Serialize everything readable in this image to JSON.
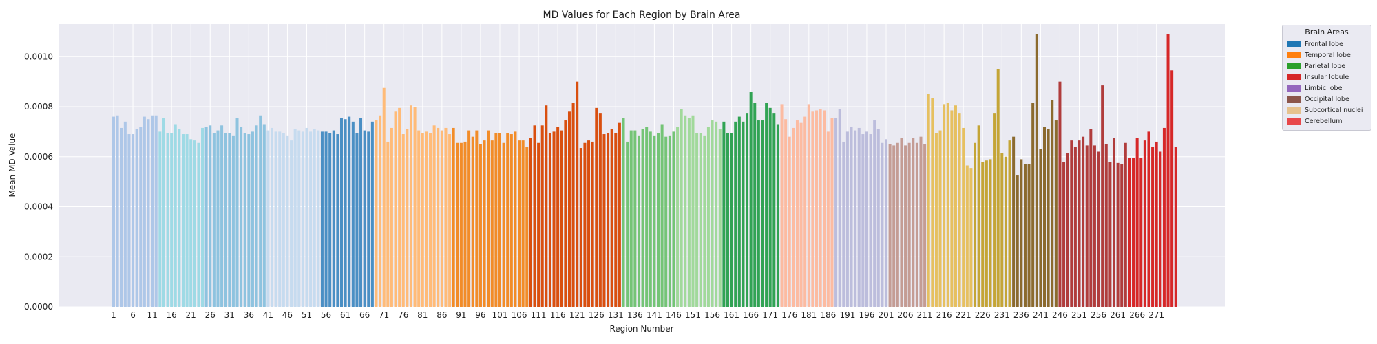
{
  "chart_data": {
    "type": "bar",
    "title": "MD Values for Each Region by Brain Area",
    "xlabel": "Region Number",
    "ylabel": "Mean MD Value",
    "ylim": [
      0,
      0.00113
    ],
    "yticks": [
      "0.0000",
      "0.0002",
      "0.0004",
      "0.0006",
      "0.0008",
      "0.0010"
    ],
    "ytick_values": [
      0,
      0.0002,
      0.0004,
      0.0006,
      0.0008,
      0.001
    ],
    "xtick_labels": [
      "1",
      "6",
      "11",
      "16",
      "21",
      "26",
      "31",
      "36",
      "41",
      "46",
      "51",
      "56",
      "61",
      "66",
      "71",
      "76",
      "81",
      "86",
      "91",
      "96",
      "101",
      "106",
      "111",
      "116",
      "121",
      "126",
      "131",
      "136",
      "141",
      "146",
      "151",
      "156",
      "161",
      "166",
      "171",
      "176",
      "181",
      "186",
      "191",
      "196",
      "201",
      "206",
      "211",
      "216",
      "221",
      "226",
      "231",
      "236",
      "241",
      "246",
      "251",
      "256",
      "261",
      "266",
      "271"
    ],
    "grid": true,
    "legend_placement": "outside-top-right",
    "legend_title": "Brain Areas",
    "legend": [
      {
        "name": "Frontal lobe",
        "color": "#1f77b4"
      },
      {
        "name": "Temporal lobe",
        "color": "#ff7f0e"
      },
      {
        "name": "Parietal lobe",
        "color": "#2ca02c"
      },
      {
        "name": "Insular lobule",
        "color": "#d62728"
      },
      {
        "name": "Limbic lobe",
        "color": "#9467bd"
      },
      {
        "name": "Occipital lobe",
        "color": "#8c564b"
      },
      {
        "name": "Subcortical nuclei",
        "color": "#e6c28e"
      },
      {
        "name": "Cerebellum",
        "color": "#e8474a"
      }
    ],
    "regions": [
      1,
      274
    ],
    "values": [
      0.00076,
      0.000765,
      0.000715,
      0.00074,
      0.00069,
      0.00069,
      0.00071,
      0.00072,
      0.00076,
      0.00075,
      0.000765,
      0.000765,
      0.0007,
      0.000755,
      0.000695,
      0.000695,
      0.00073,
      0.00071,
      0.00069,
      0.00069,
      0.00067,
      0.000665,
      0.000655,
      0.000715,
      0.00072,
      0.000725,
      0.000695,
      0.000705,
      0.000725,
      0.000695,
      0.000695,
      0.000685,
      0.000755,
      0.00072,
      0.000695,
      0.00069,
      0.0007,
      0.000725,
      0.000765,
      0.00073,
      0.000705,
      0.000715,
      0.0007,
      0.0007,
      0.000695,
      0.000685,
      0.000665,
      0.00071,
      0.000705,
      0.0007,
      0.000715,
      0.0007,
      0.00071,
      0.000705,
      0.0007,
      0.0007,
      0.000695,
      0.000705,
      0.00069,
      0.000755,
      0.00075,
      0.00076,
      0.00074,
      0.000695,
      0.000755,
      0.000705,
      0.0007,
      0.00074,
      0.000745,
      0.000765,
      0.000875,
      0.00066,
      0.000715,
      0.00078,
      0.000795,
      0.00069,
      0.00071,
      0.000805,
      0.0008,
      0.000705,
      0.000695,
      0.0007,
      0.000695,
      0.000725,
      0.000715,
      0.000705,
      0.000715,
      0.00069,
      0.000715,
      0.000655,
      0.000655,
      0.00066,
      0.000705,
      0.00068,
      0.000705,
      0.00065,
      0.000665,
      0.000705,
      0.000665,
      0.000695,
      0.000695,
      0.000655,
      0.000695,
      0.00069,
      0.0007,
      0.000665,
      0.000665,
      0.00064,
      0.000675,
      0.000725,
      0.000655,
      0.000725,
      0.000805,
      0.000695,
      0.0007,
      0.00072,
      0.000705,
      0.000745,
      0.00078,
      0.000815,
      0.0009,
      0.000635,
      0.000655,
      0.000665,
      0.00066,
      0.000795,
      0.000775,
      0.00069,
      0.000695,
      0.00071,
      0.000695,
      0.000735,
      0.000755,
      0.00066,
      0.000705,
      0.000705,
      0.000685,
      0.00071,
      0.00072,
      0.0007,
      0.000685,
      0.000695,
      0.00073,
      0.00068,
      0.000685,
      0.0007,
      0.00072,
      0.00079,
      0.000765,
      0.000755,
      0.000765,
      0.000695,
      0.000695,
      0.000685,
      0.00072,
      0.000745,
      0.00074,
      0.00071,
      0.00074,
      0.000695,
      0.000695,
      0.00074,
      0.00076,
      0.00074,
      0.000775,
      0.00086,
      0.000815,
      0.000745,
      0.000745,
      0.000815,
      0.000795,
      0.000775,
      0.00073,
      0.00081,
      0.00075,
      0.00068,
      0.000715,
      0.000745,
      0.000735,
      0.00076,
      0.00081,
      0.00078,
      0.000785,
      0.00079,
      0.000785,
      0.0007,
      0.000755,
      0.000755,
      0.00079,
      0.00066,
      0.0007,
      0.00072,
      0.000705,
      0.000715,
      0.00069,
      0.0007,
      0.00069,
      0.000745,
      0.00071,
      0.000655,
      0.00067,
      0.00065,
      0.000645,
      0.000655,
      0.000675,
      0.000645,
      0.000655,
      0.000675,
      0.000655,
      0.00068,
      0.00065,
      0.00085,
      0.000835,
      0.000695,
      0.000705,
      0.00081,
      0.000815,
      0.000785,
      0.000805,
      0.000775,
      0.000715,
      0.000565,
      0.000555,
      0.000655,
      0.000725,
      0.00058,
      0.000585,
      0.00059,
      0.000775,
      0.00095,
      0.000615,
      0.0006,
      0.000665,
      0.00068,
      0.000525,
      0.00059,
      0.00057,
      0.00057,
      0.000815,
      0.00109,
      0.00063,
      0.00072,
      0.00071,
      0.000825,
      0.000745,
      0.0009,
      0.00058,
      0.000615,
      0.000665,
      0.00064,
      0.000665,
      0.00068,
      0.000645,
      0.00071,
      0.000645,
      0.00062,
      0.000885,
      0.00065,
      0.00058,
      0.000675,
      0.000575,
      0.00057,
      0.000655,
      0.000595,
      0.000595,
      0.000675,
      0.000595,
      0.000665,
      0.0007,
      0.00064,
      0.00066,
      0.00062,
      0.000715,
      0.00109,
      0.000945,
      0.00064
    ],
    "bar_colors": [
      "#aec7e8",
      "#aec7e8",
      "#aec7e8",
      "#aec7e8",
      "#aec7e8",
      "#aec7e8",
      "#aec7e8",
      "#aec7e8",
      "#aec7e8",
      "#aec7e8",
      "#aec7e8",
      "#aec7e8",
      "#9edae5",
      "#9edae5",
      "#9edae5",
      "#9edae5",
      "#9edae5",
      "#9edae5",
      "#9edae5",
      "#9edae5",
      "#9edae5",
      "#9edae5",
      "#9edae5",
      "#9edae5",
      "#8ec3df",
      "#8ec3df",
      "#8ec3df",
      "#8ec3df",
      "#8ec3df",
      "#8ec3df",
      "#8ec3df",
      "#8ec3df",
      "#8ec3df",
      "#8ec3df",
      "#8ec3df",
      "#8ec3df",
      "#8ec3df",
      "#8ec3df",
      "#8ec3df",
      "#8ec3df",
      "#c6dbef",
      "#c6dbef",
      "#c6dbef",
      "#c6dbef",
      "#c6dbef",
      "#c6dbef",
      "#c6dbef",
      "#c6dbef",
      "#c6dbef",
      "#c6dbef",
      "#c6dbef",
      "#c6dbef",
      "#c6dbef",
      "#c6dbef",
      "#4a8fc4",
      "#4a8fc4",
      "#4a8fc4",
      "#4a8fc4",
      "#4a8fc4",
      "#4a8fc4",
      "#4a8fc4",
      "#4a8fc4",
      "#4a8fc4",
      "#4a8fc4",
      "#4a8fc4",
      "#4a8fc4",
      "#4a8fc4",
      "#4a8fc4",
      "#ffbb78",
      "#ffbb78",
      "#ffbb78",
      "#ffbb78",
      "#ffbb78",
      "#ffbb78",
      "#ffbb78",
      "#ffbb78",
      "#ffbb78",
      "#ffbb78",
      "#ffbb78",
      "#ffbb78",
      "#ffbb78",
      "#ffbb78",
      "#ffbb78",
      "#ffbb78",
      "#ffbb78",
      "#ffbb78",
      "#ffbb78",
      "#ffbb78",
      "#f28c28",
      "#f28c28",
      "#f28c28",
      "#f28c28",
      "#f28c28",
      "#f28c28",
      "#f28c28",
      "#f28c28",
      "#f28c28",
      "#f28c28",
      "#f28c28",
      "#f28c28",
      "#f28c28",
      "#f28c28",
      "#f28c28",
      "#f28c28",
      "#f28c28",
      "#f28c28",
      "#f28c28",
      "#f28c28",
      "#d94f0f",
      "#d94f0f",
      "#d94f0f",
      "#d94f0f",
      "#d94f0f",
      "#d94f0f",
      "#d94f0f",
      "#d94f0f",
      "#d94f0f",
      "#d94f0f",
      "#d94f0f",
      "#d94f0f",
      "#d94f0f",
      "#d94f0f",
      "#d94f0f",
      "#d94f0f",
      "#d94f0f",
      "#d94f0f",
      "#d94f0f",
      "#d94f0f",
      "#d94f0f",
      "#d94f0f",
      "#d94f0f",
      "#d94f0f",
      "#74c476",
      "#74c476",
      "#74c476",
      "#74c476",
      "#74c476",
      "#74c476",
      "#74c476",
      "#74c476",
      "#74c476",
      "#74c476",
      "#74c476",
      "#74c476",
      "#74c476",
      "#74c476",
      "#a1d99b",
      "#a1d99b",
      "#a1d99b",
      "#a1d99b",
      "#a1d99b",
      "#a1d99b",
      "#a1d99b",
      "#a1d99b",
      "#a1d99b",
      "#a1d99b",
      "#a1d99b",
      "#a1d99b",
      "#31a354",
      "#31a354",
      "#31a354",
      "#31a354",
      "#31a354",
      "#31a354",
      "#31a354",
      "#31a354",
      "#31a354",
      "#31a354",
      "#31a354",
      "#31a354",
      "#31a354",
      "#31a354",
      "#31a354",
      "#fcbba1",
      "#fcbba1",
      "#fcbba1",
      "#fcbba1",
      "#fcbba1",
      "#fcbba1",
      "#fcbba1",
      "#fcbba1",
      "#fcbba1",
      "#fcbba1",
      "#fcbba1",
      "#fcbba1",
      "#fcbba1",
      "#fcbba1",
      "#bcbddc",
      "#bcbddc",
      "#bcbddc",
      "#bcbddc",
      "#bcbddc",
      "#bcbddc",
      "#bcbddc",
      "#bcbddc",
      "#bcbddc",
      "#bcbddc",
      "#bcbddc",
      "#bcbddc",
      "#bcbddc",
      "#bcbddc",
      "#c49c94",
      "#c49c94",
      "#c49c94",
      "#c49c94",
      "#c49c94",
      "#c49c94",
      "#c49c94",
      "#c49c94",
      "#c49c94",
      "#c49c94",
      "#e6c060",
      "#e6c060",
      "#e6c060",
      "#e6c060",
      "#e6c060",
      "#e6c060",
      "#e6c060",
      "#e6c060",
      "#e6c060",
      "#e6c060",
      "#e6c060",
      "#e6c060",
      "#c4a536",
      "#c4a536",
      "#c4a536",
      "#c4a536",
      "#c4a536",
      "#c4a536",
      "#c4a536",
      "#c4a536",
      "#c4a536",
      "#c4a536",
      "#8b6a2e",
      "#8b6a2e",
      "#8b6a2e",
      "#8b6a2e",
      "#8b6a2e",
      "#8b6a2e",
      "#8b6a2e",
      "#8b6a2e",
      "#8b6a2e",
      "#8b6a2e",
      "#8b6a2e",
      "#8b6a2e",
      "#b03c3c",
      "#b03c3c",
      "#b03c3c",
      "#b03c3c",
      "#b03c3c",
      "#b03c3c",
      "#b03c3c",
      "#b03c3c",
      "#b03c3c",
      "#b03c3c",
      "#b03c3c",
      "#b03c3c",
      "#b03c3c",
      "#b03c3c",
      "#b03c3c",
      "#b03c3c",
      "#b03c3c",
      "#b03c3c",
      "#d62728",
      "#d62728",
      "#d62728",
      "#d62728",
      "#d62728",
      "#d62728",
      "#d62728",
      "#d62728",
      "#d62728",
      "#d62728",
      "#d62728",
      "#d62728",
      "#d62728",
      "#e8474a",
      "#e8474a",
      "#e8474a",
      "#e8474a",
      "#e8474a",
      "#e8474a",
      "#e8474a",
      "#e8474a",
      "#e8474a",
      "#e8474a",
      "#e8474a",
      "#e8474a",
      "#e8474a",
      "#e8474a",
      "#e8474a",
      "#e8474a",
      "#e8474a",
      "#e8474a",
      "#e8474a",
      "#e8474a",
      "#e8474a"
    ]
  }
}
